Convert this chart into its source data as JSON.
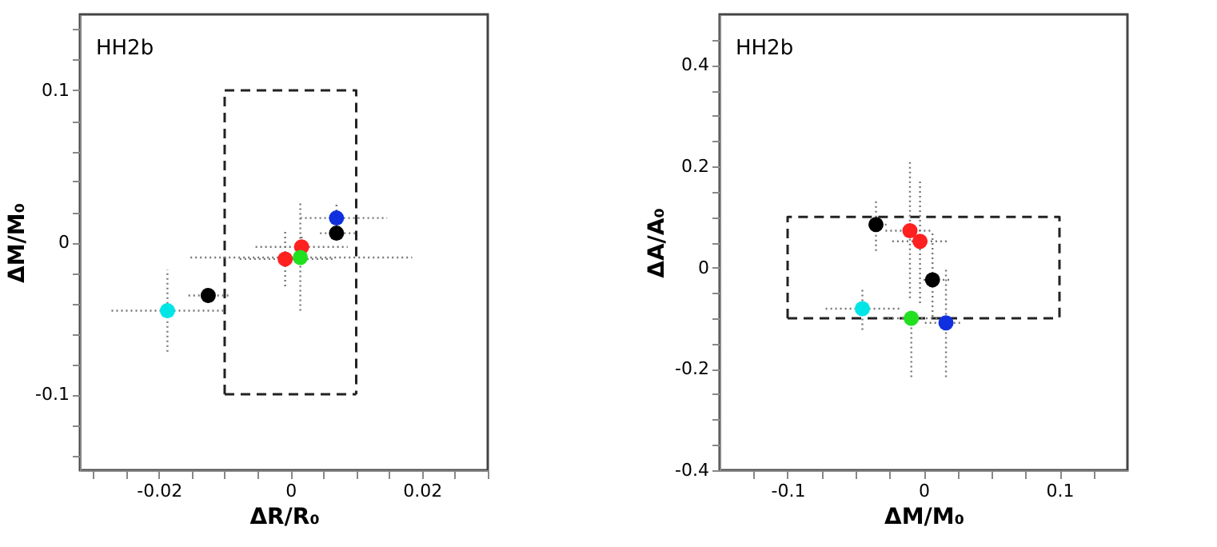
{
  "chart_data": [
    {
      "type": "scatter",
      "xlabel": "ΔR/R₀",
      "ylabel": "ΔM/M₀",
      "annotations": [
        "HH2b"
      ],
      "xlim": [
        -0.032,
        0.03
      ],
      "ylim": [
        -0.15,
        0.15
      ],
      "xticks": [
        {
          "value": -0.03,
          "label": null
        },
        {
          "value": -0.025,
          "label": null
        },
        -0.02,
        {
          "value": -0.015,
          "label": null
        },
        {
          "value": -0.01,
          "label": null
        },
        {
          "value": -0.005,
          "label": null
        },
        0,
        {
          "value": 0.005,
          "label": null
        },
        {
          "value": 0.01,
          "label": null
        },
        {
          "value": 0.015,
          "label": null
        },
        0.02,
        {
          "value": 0.025,
          "label": null
        },
        {
          "value": 0.03,
          "label": null
        }
      ],
      "yticks": [
        {
          "value": -0.14,
          "label": null
        },
        {
          "value": -0.12,
          "label": null
        },
        -0.1,
        {
          "value": -0.08,
          "label": null
        },
        {
          "value": -0.06,
          "label": null
        },
        {
          "value": -0.04,
          "label": null
        },
        {
          "value": -0.02,
          "label": null
        },
        0,
        {
          "value": 0.02,
          "label": null
        },
        {
          "value": 0.04,
          "label": null
        },
        {
          "value": 0.06,
          "label": null
        },
        {
          "value": 0.08,
          "label": null
        },
        0.1,
        {
          "value": 0.12,
          "label": null
        },
        {
          "value": 0.14,
          "label": null
        }
      ],
      "series": [
        {
          "marker": "circle",
          "x": [
            -0.0187,
            -0.0125,
            -0.0008,
            0.0017,
            0.0015,
            0.007,
            0.007
          ],
          "values": [
            -0.045,
            -0.035,
            -0.011,
            -0.003,
            -0.01,
            0.016,
            0.006
          ],
          "colors": [
            "#00e5e5",
            "#000000",
            "#ff2020",
            "#ff2020",
            "#20e020",
            "#1030e0",
            "#000000"
          ],
          "xerrors": [
            [
              -0.0272,
              -0.0102
            ],
            [
              -0.0155,
              -0.0093
            ],
            [
              -0.0077,
              0.0064
            ],
            [
              -0.0053,
              0.0087
            ],
            [
              -0.0152,
              0.0185
            ],
            [
              0.0015,
              0.0147
            ],
            [
              0.0045,
              0.0098
            ]
          ],
          "errors": [
            [
              -0.072,
              -0.018
            ],
            [
              -0.04,
              -0.031
            ],
            [
              -0.029,
              0.007
            ],
            [
              -0.01,
              0.005
            ],
            [
              -0.045,
              0.027
            ],
            [
              0.011,
              0.025
            ],
            [
              0.003,
              0.01
            ]
          ]
        },
        {
          "type": "line",
          "line_style": "dashed",
          "color": "#222222",
          "x": [
            -0.01,
            -0.01,
            0.01,
            0.01
          ],
          "values": [
            -0.1,
            0.1,
            0.1,
            -0.1
          ]
        },
        {
          "type": "line",
          "line_style": "dashed",
          "color": "#222222",
          "x": [
            -0.01,
            0.01
          ],
          "values": [
            -0.1,
            -0.1
          ]
        }
      ]
    },
    {
      "type": "scatter",
      "xlabel": "ΔM/M₀",
      "ylabel": "ΔA/A₀",
      "annotations": [
        "HH2b"
      ],
      "xlim": [
        -0.15,
        0.15
      ],
      "ylim": [
        -0.4,
        0.5
      ],
      "xticks": [
        {
          "value": -0.125,
          "label": null
        },
        -0.1,
        {
          "value": -0.075,
          "label": null
        },
        {
          "value": -0.05,
          "label": null
        },
        {
          "value": -0.025,
          "label": null
        },
        0,
        {
          "value": 0.025,
          "label": null
        },
        {
          "value": 0.05,
          "label": null
        },
        {
          "value": 0.075,
          "label": null
        },
        0.1,
        {
          "value": 0.125,
          "label": null
        }
      ],
      "yticks": [
        -0.4,
        {
          "value": -0.35,
          "label": null
        },
        {
          "value": -0.3,
          "label": null
        },
        {
          "value": -0.25,
          "label": null
        },
        -0.2,
        {
          "value": -0.15,
          "label": null
        },
        {
          "value": -0.1,
          "label": null
        },
        {
          "value": -0.05,
          "label": null
        },
        0,
        {
          "value": 0.05,
          "label": null
        },
        {
          "value": 0.1,
          "label": null
        },
        {
          "value": 0.15,
          "label": null
        },
        0.2,
        {
          "value": 0.25,
          "label": null
        },
        {
          "value": 0.3,
          "label": null
        },
        {
          "value": 0.35,
          "label": null
        },
        0.4,
        {
          "value": 0.45,
          "label": null
        }
      ],
      "series": [
        {
          "marker": "circle",
          "x": [
            -0.035,
            -0.01,
            -0.0026,
            0.0066,
            -0.045,
            -0.009,
            0.0165
          ],
          "values": [
            0.085,
            0.073,
            0.052,
            -0.024,
            -0.081,
            -0.1,
            -0.109
          ],
          "colors": [
            "#000000",
            "#ff2020",
            "#ff2020",
            "#000000",
            "#00e5e5",
            "#20e020",
            "#1030e0"
          ],
          "xerrors": [
            [
              -0.039,
              -0.026
            ],
            [
              -0.028,
              0.007
            ],
            [
              -0.023,
              0.017
            ],
            [
              0.0,
              0.021
            ],
            [
              -0.072,
              -0.017
            ],
            [
              -0.03,
              0.012
            ],
            [
              0.001,
              0.027
            ]
          ],
          "errors": [
            [
              0.033,
              0.137
            ],
            [
              -0.06,
              0.21
            ],
            [
              -0.07,
              0.174
            ],
            [
              -0.097,
              0.07
            ],
            [
              -0.123,
              -0.04
            ],
            [
              -0.216,
              -0.086
            ],
            [
              -0.216,
              -0.003
            ]
          ]
        },
        {
          "type": "line",
          "line_style": "dashed",
          "color": "#222222",
          "x": [
            -0.1,
            -0.1,
            0.1,
            0.1
          ],
          "values": [
            -0.1,
            0.1,
            0.1,
            -0.1
          ]
        },
        {
          "type": "line",
          "line_style": "dashed",
          "color": "#222222",
          "x": [
            -0.1,
            0.1
          ],
          "values": [
            -0.1,
            -0.1
          ]
        }
      ]
    }
  ]
}
